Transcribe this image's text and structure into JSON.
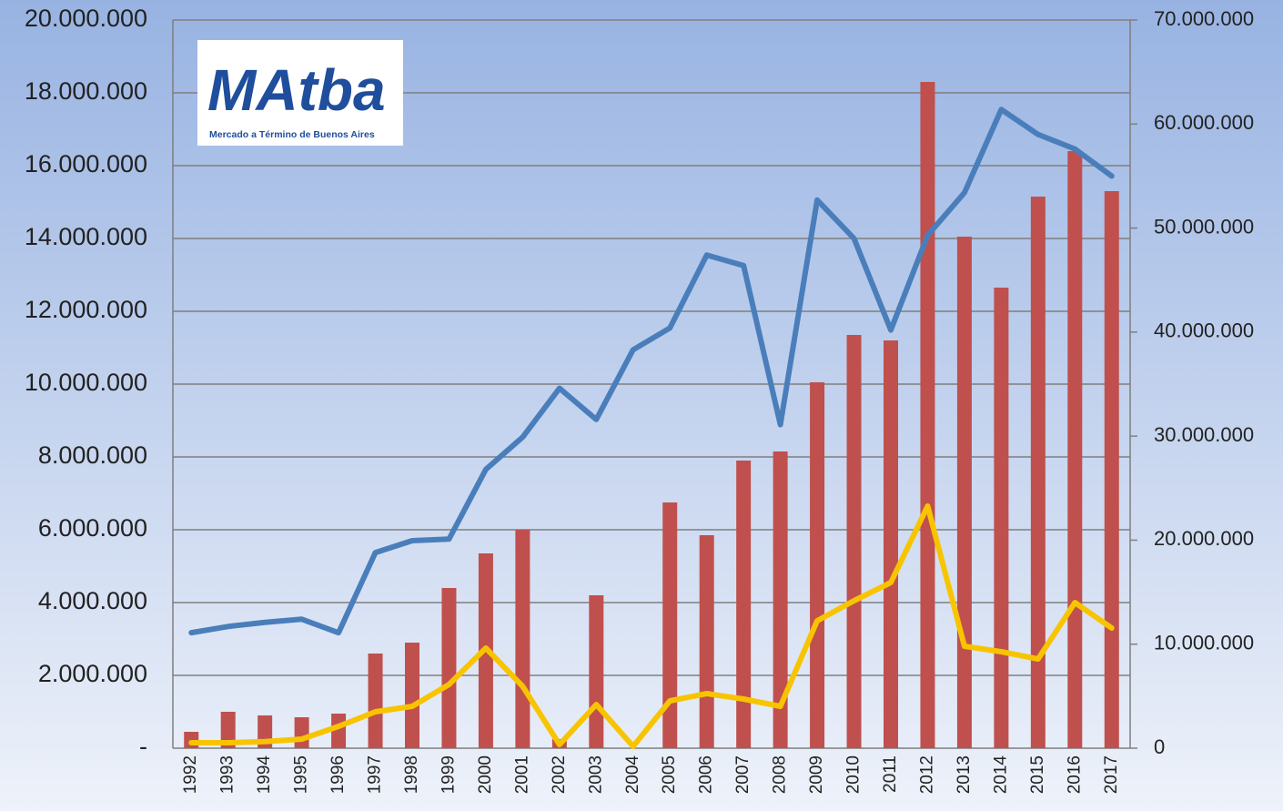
{
  "chart_data": {
    "type": "bar-line",
    "logo": {
      "text": "MAtba",
      "caption": "Mercado a Término de Buenos Aires"
    },
    "categories": [
      "1992",
      "1993",
      "1994",
      "1995",
      "1996",
      "1997",
      "1998",
      "1999",
      "2000",
      "2001",
      "2002",
      "2003",
      "2004",
      "2005",
      "2006",
      "2007",
      "2008",
      "2009",
      "2010",
      "2011",
      "2012",
      "2013",
      "2014",
      "2015",
      "2016",
      "2017"
    ],
    "series": [
      {
        "kind": "bar",
        "color": "#c0504d",
        "axis": "y",
        "values": [
          450000,
          1000000,
          900000,
          850000,
          950000,
          2600000,
          2900000,
          4400000,
          5350000,
          6000000,
          250000,
          4200000,
          0,
          6750000,
          5850000,
          7900000,
          8150000,
          10050000,
          11350000,
          11200000,
          18300000,
          14050000,
          12650000,
          15150000,
          16400000,
          15300000
        ]
      },
      {
        "kind": "line",
        "color": "#4a7ebb",
        "axis": "y2",
        "values": [
          11100000,
          11700000,
          12100000,
          12400000,
          11100000,
          18800000,
          19950000,
          20100000,
          26800000,
          29900000,
          34600000,
          31600000,
          38300000,
          40400000,
          47400000,
          46400000,
          31100000,
          52700000,
          49000000,
          40200000,
          49300000,
          53400000,
          61400000,
          59000000,
          57600000,
          55000000
        ]
      },
      {
        "kind": "line",
        "color": "#f8c400",
        "axis": "y",
        "values": [
          150000,
          150000,
          180000,
          250000,
          600000,
          1000000,
          1150000,
          1750000,
          2750000,
          1700000,
          100000,
          1200000,
          50000,
          1300000,
          1500000,
          1350000,
          1150000,
          3500000,
          4050000,
          4550000,
          6650000,
          2800000,
          2650000,
          2450000,
          4000000,
          3300000
        ]
      }
    ],
    "ylim": [
      0,
      20000000
    ],
    "yticks": [
      {
        "value": 0,
        "label": "-"
      },
      {
        "value": 2000000,
        "label": "2.000.000"
      },
      {
        "value": 4000000,
        "label": "4.000.000"
      },
      {
        "value": 6000000,
        "label": "6.000.000"
      },
      {
        "value": 8000000,
        "label": "8.000.000"
      },
      {
        "value": 10000000,
        "label": "10.000.000"
      },
      {
        "value": 12000000,
        "label": "12.000.000"
      },
      {
        "value": 14000000,
        "label": "14.000.000"
      },
      {
        "value": 16000000,
        "label": "16.000.000"
      },
      {
        "value": 18000000,
        "label": "18.000.000"
      },
      {
        "value": 20000000,
        "label": "20.000.000"
      }
    ],
    "y2lim": [
      0,
      70000000
    ],
    "y2ticks": [
      0,
      {
        "value": 10000000,
        "label": "10.000.000"
      },
      {
        "value": 20000000,
        "label": "20.000.000"
      },
      {
        "value": 30000000,
        "label": "30.000.000"
      },
      {
        "value": 40000000,
        "label": "40.000.000"
      },
      {
        "value": 50000000,
        "label": "50.000.000"
      },
      {
        "value": 60000000,
        "label": "60.000.000"
      },
      {
        "value": 70000000,
        "label": "70.000.000"
      }
    ],
    "grid": true
  }
}
